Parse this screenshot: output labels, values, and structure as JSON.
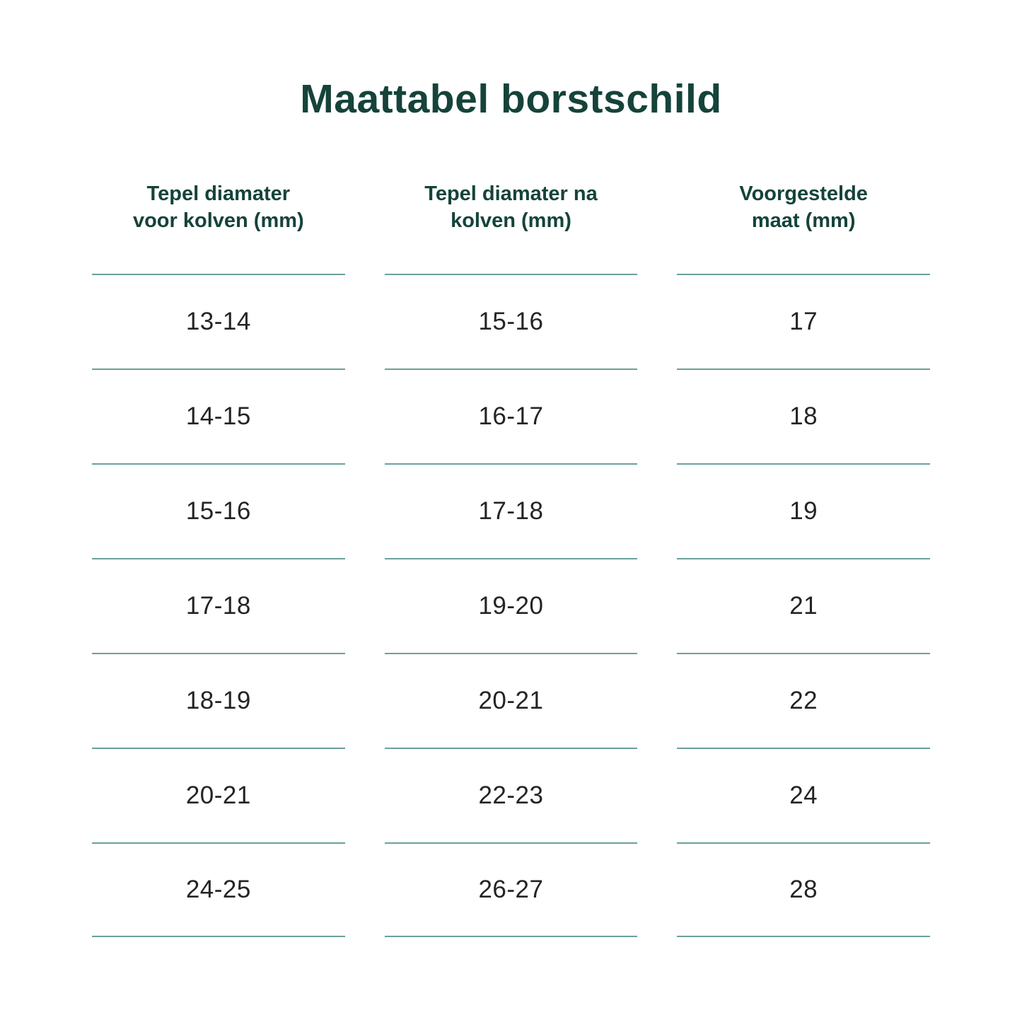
{
  "page": {
    "title": "Maattabel borstschild",
    "title_color": "#15433a",
    "line_color": "#6ba19c",
    "background": "#ffffff"
  },
  "table": {
    "columns": [
      {
        "label_line1": "Tepel diamater",
        "label_line2": "voor kolven (mm)"
      },
      {
        "label_line1": "Tepel diamater na",
        "label_line2": "kolven (mm)"
      },
      {
        "label_line1": "Voorgestelde",
        "label_line2": "maat (mm)"
      }
    ],
    "rows": [
      [
        "13-14",
        "15-16",
        "17"
      ],
      [
        "14-15",
        "16-17",
        "18"
      ],
      [
        "15-16",
        "17-18",
        "19"
      ],
      [
        "17-18",
        "19-20",
        "21"
      ],
      [
        "18-19",
        "20-21",
        "22"
      ],
      [
        "20-21",
        "22-23",
        "24"
      ],
      [
        "24-25",
        "26-27",
        "28"
      ]
    ]
  }
}
